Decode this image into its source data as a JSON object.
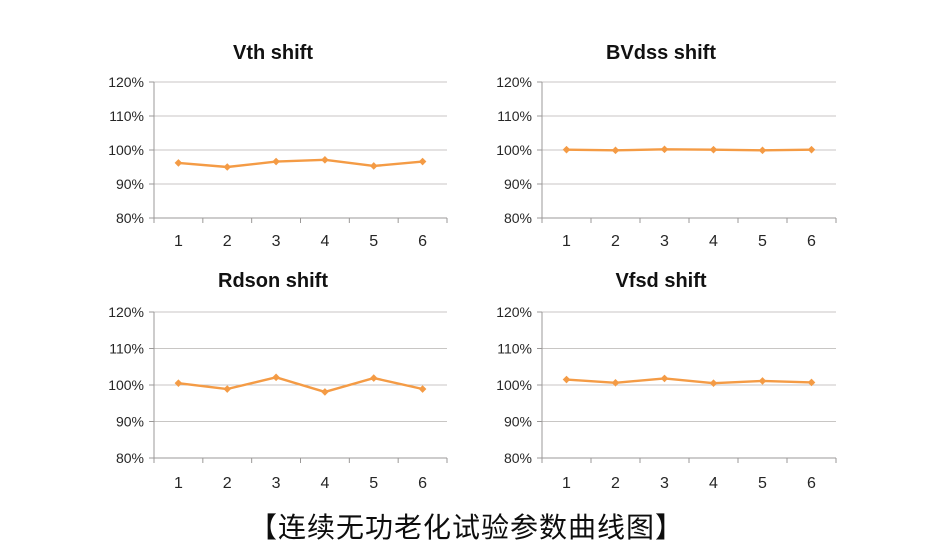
{
  "caption": "【连续无功老化试验参数曲线图】",
  "colors": {
    "series": "#F49B45",
    "gridline": "#C8C6C4",
    "axis": "#9B9998",
    "title_text": "#111111",
    "tick_text": "#262626"
  },
  "chart_data": [
    {
      "type": "line",
      "title": "Vth shift",
      "categories": [
        "1",
        "2",
        "3",
        "4",
        "5",
        "6"
      ],
      "values": [
        96.2,
        95.0,
        96.6,
        97.1,
        95.3,
        96.6
      ],
      "y_ticks": [
        "120%",
        "110%",
        "100%",
        "90%",
        "80%"
      ],
      "ylim": [
        80,
        120
      ],
      "xlabel": "",
      "ylabel": "",
      "grid": true,
      "legend": false,
      "marker": "diamond"
    },
    {
      "type": "line",
      "title": "BVdss shift",
      "categories": [
        "1",
        "2",
        "3",
        "4",
        "5",
        "6"
      ],
      "values": [
        100.1,
        99.9,
        100.2,
        100.1,
        99.9,
        100.1
      ],
      "y_ticks": [
        "120%",
        "110%",
        "100%",
        "90%",
        "80%"
      ],
      "ylim": [
        80,
        120
      ],
      "xlabel": "",
      "ylabel": "",
      "grid": true,
      "legend": false,
      "marker": "diamond"
    },
    {
      "type": "line",
      "title": "Rdson shift",
      "categories": [
        "1",
        "2",
        "3",
        "4",
        "5",
        "6"
      ],
      "values": [
        100.5,
        98.9,
        102.1,
        98.1,
        101.9,
        98.9
      ],
      "y_ticks": [
        "120%",
        "110%",
        "100%",
        "90%",
        "80%"
      ],
      "ylim": [
        80,
        120
      ],
      "xlabel": "",
      "ylabel": "",
      "grid": true,
      "legend": false,
      "marker": "diamond"
    },
    {
      "type": "line",
      "title": "Vfsd shift",
      "categories": [
        "1",
        "2",
        "3",
        "4",
        "5",
        "6"
      ],
      "values": [
        101.5,
        100.6,
        101.8,
        100.5,
        101.1,
        100.7
      ],
      "y_ticks": [
        "120%",
        "110%",
        "100%",
        "90%",
        "80%"
      ],
      "ylim": [
        80,
        120
      ],
      "xlabel": "",
      "ylabel": "",
      "grid": true,
      "legend": false,
      "marker": "diamond"
    }
  ]
}
